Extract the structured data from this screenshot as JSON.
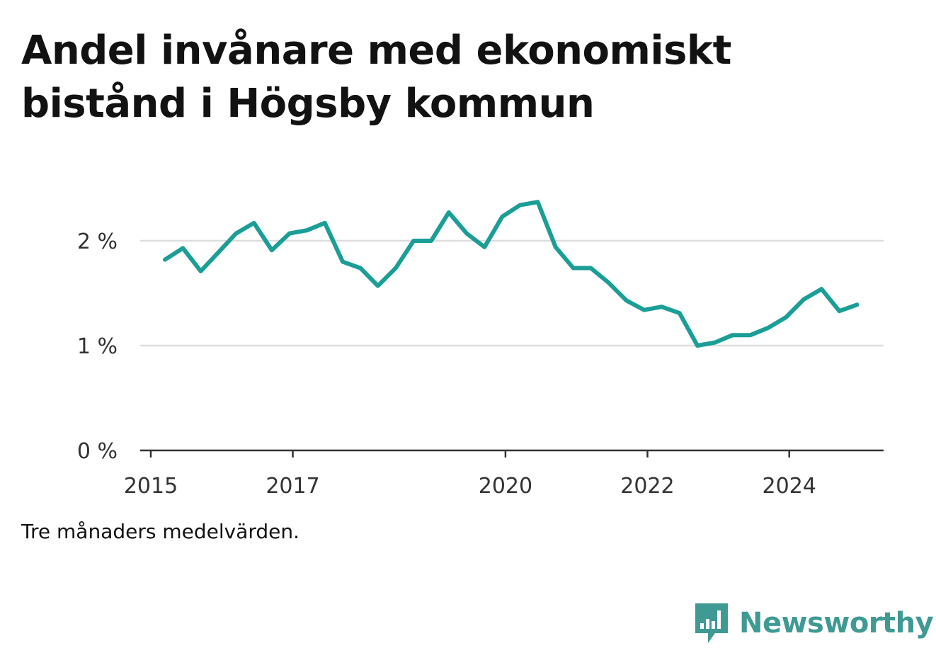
{
  "title": "Andel invånare med ekonomiskt bistånd i Högsby kommun",
  "note": "Tre månaders medelvärden.",
  "brand": "Newsworthy",
  "colors": {
    "line": "#1a9e96",
    "grid": "#dddddd",
    "axis": "#333333",
    "brand": "#3f9a94"
  },
  "chart_data": {
    "type": "line",
    "title": "Andel invånare med ekonomiskt bistånd i Högsby kommun",
    "xlabel": "",
    "ylabel": "",
    "ylim": [
      0,
      2.5
    ],
    "xlim": [
      "2015-01-01",
      "2025-06-30"
    ],
    "yticks": [
      {
        "value": 0,
        "label": "0 %"
      },
      {
        "value": 1,
        "label": "1 %"
      },
      {
        "value": 2,
        "label": "2 %"
      }
    ],
    "xticks": [
      {
        "date": "2015-01-01",
        "label": "2015"
      },
      {
        "date": "2017-01-01",
        "label": "2017"
      },
      {
        "date": "2020-01-01",
        "label": "2020"
      },
      {
        "date": "2022-01-01",
        "label": "2022"
      },
      {
        "date": "2024-01-01",
        "label": "2024"
      }
    ],
    "grid": true,
    "series": [
      {
        "x": [
          "2015-03",
          "2015-06",
          "2015-09",
          "2015-12",
          "2016-03",
          "2016-06",
          "2016-09",
          "2016-12",
          "2017-03",
          "2017-06",
          "2017-09",
          "2017-12",
          "2018-03",
          "2018-06",
          "2018-09",
          "2018-12",
          "2019-03",
          "2019-06",
          "2019-09",
          "2019-12",
          "2020-03",
          "2020-06",
          "2020-09",
          "2020-12",
          "2021-03",
          "2021-06",
          "2021-09",
          "2021-12",
          "2022-03",
          "2022-06",
          "2022-09",
          "2022-12",
          "2023-03",
          "2023-06",
          "2023-09",
          "2023-12",
          "2024-03",
          "2024-06",
          "2024-09",
          "2024-12"
        ],
        "values": [
          1.82,
          1.93,
          1.71,
          1.89,
          2.07,
          2.17,
          1.91,
          2.07,
          2.1,
          2.17,
          1.8,
          1.74,
          1.57,
          1.74,
          2.0,
          2.0,
          2.27,
          2.07,
          1.94,
          2.23,
          2.34,
          2.37,
          1.94,
          1.74,
          1.74,
          1.6,
          1.43,
          1.34,
          1.37,
          1.31,
          1.0,
          1.03,
          1.1,
          1.1,
          1.17,
          1.27,
          1.44,
          1.54,
          1.33,
          1.39
        ]
      }
    ]
  }
}
